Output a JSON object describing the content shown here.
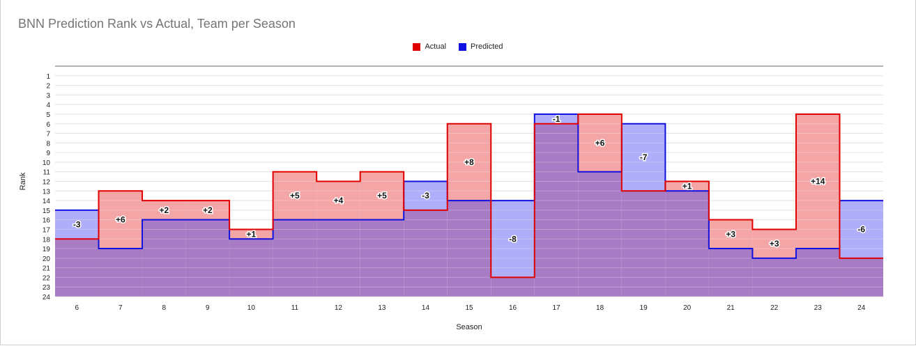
{
  "title": "BNN Prediction Rank vs Actual, Team per Season",
  "legend": {
    "actual_label": "Actual",
    "predicted_label": "Predicted"
  },
  "colors": {
    "actual_line": "#e00000",
    "actual_fill": "#f4a6a6",
    "predicted_line": "#1010e0",
    "predicted_fill": "#aeaefa",
    "overlap_fill": "#a87cc4"
  },
  "chart_data": {
    "type": "area",
    "title": "BNN Prediction Rank vs Actual, Team per Season",
    "xlabel": "Season",
    "ylabel": "Rank",
    "x": [
      6,
      7,
      8,
      9,
      10,
      11,
      12,
      13,
      14,
      15,
      16,
      17,
      18,
      19,
      20,
      21,
      22,
      23,
      24
    ],
    "ylim": [
      1,
      24
    ],
    "y_reversed": true,
    "y_ticks": [
      1,
      2,
      3,
      4,
      5,
      6,
      7,
      8,
      9,
      10,
      11,
      12,
      13,
      14,
      15,
      16,
      17,
      18,
      19,
      20,
      21,
      22,
      23,
      24
    ],
    "grid": true,
    "legend_position": "top-center",
    "step": true,
    "series": [
      {
        "name": "Actual",
        "values": [
          18,
          13,
          14,
          14,
          17,
          11,
          12,
          11,
          15,
          6,
          22,
          6,
          5,
          13,
          12,
          16,
          17,
          5,
          20
        ]
      },
      {
        "name": "Predicted",
        "values": [
          15,
          19,
          16,
          16,
          18,
          16,
          16,
          16,
          12,
          14,
          14,
          5,
          11,
          6,
          13,
          19,
          20,
          19,
          14
        ]
      }
    ],
    "annotations": [
      "-3",
      "+6",
      "+2",
      "+2",
      "+1",
      "+5",
      "+4",
      "+5",
      "-3",
      "+8",
      "-8",
      "-1",
      "+6",
      "-7",
      "+1",
      "+3",
      "+3",
      "+14",
      "-6"
    ]
  }
}
